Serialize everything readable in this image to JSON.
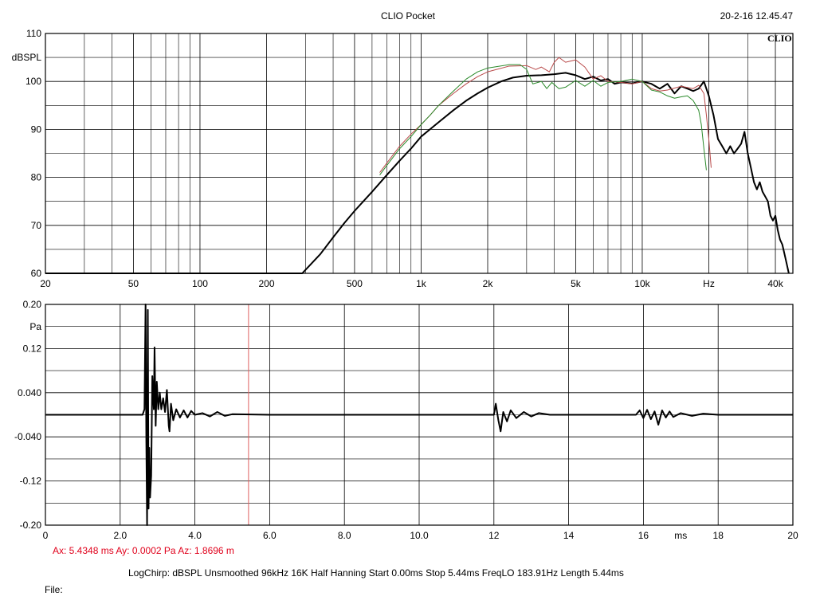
{
  "header": {
    "title": "CLIO Pocket",
    "timestamp": "20-2-16 12.45.47",
    "brand": "CLIO"
  },
  "chart_data": [
    {
      "type": "line",
      "id": "frequency-response",
      "ylabel": "dBSPL",
      "xscale": "log",
      "xlim": [
        20,
        48000
      ],
      "ylim": [
        60,
        110
      ],
      "x_ticks": [
        {
          "v": 20,
          "label": "20"
        },
        {
          "v": 50,
          "label": "50"
        },
        {
          "v": 100,
          "label": "100"
        },
        {
          "v": 200,
          "label": "200"
        },
        {
          "v": 500,
          "label": "500"
        },
        {
          "v": 1000,
          "label": "1k"
        },
        {
          "v": 2000,
          "label": "2k"
        },
        {
          "v": 5000,
          "label": "5k"
        },
        {
          "v": 10000,
          "label": "10k"
        },
        {
          "v": 20000,
          "label": "Hz"
        },
        {
          "v": 40000,
          "label": "40k"
        }
      ],
      "y_ticks": [
        {
          "v": 60,
          "label": "60"
        },
        {
          "v": 70,
          "label": "70"
        },
        {
          "v": 80,
          "label": "80"
        },
        {
          "v": 90,
          "label": "90"
        },
        {
          "v": 100,
          "label": "100"
        },
        {
          "v": 110,
          "label": "110"
        }
      ],
      "minor_gridlines_x": [
        30,
        40,
        60,
        70,
        80,
        90,
        300,
        400,
        600,
        700,
        800,
        900,
        3000,
        4000,
        6000,
        7000,
        8000,
        9000,
        30000
      ],
      "minor_gridlines_y": [
        65,
        75,
        85,
        95,
        105
      ],
      "grid": true,
      "series": [
        {
          "color": "#000000",
          "width": 2,
          "points": [
            [
              20,
              60
            ],
            [
              290,
              60
            ],
            [
              350,
              64
            ],
            [
              400,
              67.5
            ],
            [
              450,
              70.5
            ],
            [
              500,
              73
            ],
            [
              600,
              77
            ],
            [
              700,
              80.5
            ],
            [
              800,
              83.5
            ],
            [
              900,
              86
            ],
            [
              1000,
              88.5
            ],
            [
              1200,
              91.5
            ],
            [
              1400,
              94
            ],
            [
              1600,
              96
            ],
            [
              1800,
              97.5
            ],
            [
              2000,
              98.7
            ],
            [
              2300,
              100
            ],
            [
              2600,
              100.8
            ],
            [
              3000,
              101.2
            ],
            [
              3500,
              101.3
            ],
            [
              4000,
              101.5
            ],
            [
              4500,
              101.8
            ],
            [
              5000,
              101.3
            ],
            [
              5500,
              100.5
            ],
            [
              6000,
              101
            ],
            [
              6500,
              100.2
            ],
            [
              7000,
              100.5
            ],
            [
              7500,
              99.5
            ],
            [
              8000,
              99.8
            ],
            [
              9000,
              99.6
            ],
            [
              10000,
              100
            ],
            [
              11000,
              99.5
            ],
            [
              12000,
              98.5
            ],
            [
              13000,
              99.5
            ],
            [
              14000,
              97.5
            ],
            [
              15000,
              99
            ],
            [
              16000,
              98.5
            ],
            [
              17000,
              98
            ],
            [
              18000,
              98.5
            ],
            [
              19000,
              100
            ],
            [
              20000,
              97
            ],
            [
              21000,
              93
            ],
            [
              22000,
              88
            ],
            [
              23000,
              86.5
            ],
            [
              24000,
              85
            ],
            [
              25000,
              86.5
            ],
            [
              26000,
              85
            ],
            [
              27000,
              86
            ],
            [
              28000,
              87
            ],
            [
              29000,
              89.5
            ],
            [
              30000,
              85
            ],
            [
              31000,
              82
            ],
            [
              32000,
              79
            ],
            [
              33000,
              77.5
            ],
            [
              34000,
              79
            ],
            [
              35000,
              77
            ],
            [
              36000,
              76
            ],
            [
              37000,
              75
            ],
            [
              38000,
              72
            ],
            [
              39000,
              71
            ],
            [
              40000,
              72
            ],
            [
              41000,
              69
            ],
            [
              42000,
              67
            ],
            [
              43000,
              66
            ],
            [
              44000,
              64
            ],
            [
              45000,
              62
            ],
            [
              46000,
              60
            ]
          ]
        },
        {
          "color": "#b94a4a",
          "width": 1,
          "points": [
            [
              650,
              81
            ],
            [
              700,
              83
            ],
            [
              800,
              86.5
            ],
            [
              900,
              89
            ],
            [
              1000,
              91
            ],
            [
              1100,
              93
            ],
            [
              1200,
              95
            ],
            [
              1400,
              97.5
            ],
            [
              1600,
              99.5
            ],
            [
              1800,
              101
            ],
            [
              2000,
              102
            ],
            [
              2500,
              103.2
            ],
            [
              3000,
              103.3
            ],
            [
              3300,
              102.5
            ],
            [
              3500,
              103
            ],
            [
              3800,
              102
            ],
            [
              4000,
              104
            ],
            [
              4200,
              105
            ],
            [
              4500,
              104
            ],
            [
              5000,
              104.5
            ],
            [
              5500,
              103
            ],
            [
              6000,
              100.5
            ],
            [
              6500,
              101.2
            ],
            [
              7000,
              100
            ],
            [
              8000,
              99.8
            ],
            [
              9000,
              99.5
            ],
            [
              10000,
              100
            ],
            [
              11000,
              98.5
            ],
            [
              12000,
              98
            ],
            [
              13000,
              98.2
            ],
            [
              15000,
              99
            ],
            [
              17000,
              98.5
            ],
            [
              18000,
              99.2
            ],
            [
              19000,
              97.5
            ],
            [
              19500,
              93
            ],
            [
              20000,
              88
            ],
            [
              20500,
              82
            ]
          ]
        },
        {
          "color": "#2a8a2a",
          "width": 1,
          "points": [
            [
              650,
              80.5
            ],
            [
              700,
              82.5
            ],
            [
              800,
              86
            ],
            [
              900,
              88.5
            ],
            [
              1000,
              91
            ],
            [
              1100,
              93
            ],
            [
              1200,
              95
            ],
            [
              1400,
              98
            ],
            [
              1600,
              100.5
            ],
            [
              1800,
              102
            ],
            [
              2000,
              102.8
            ],
            [
              2500,
              103.5
            ],
            [
              2800,
              103.5
            ],
            [
              3000,
              102.5
            ],
            [
              3200,
              99.5
            ],
            [
              3500,
              100
            ],
            [
              3700,
              98.5
            ],
            [
              3900,
              99.8
            ],
            [
              4200,
              98.5
            ],
            [
              4500,
              98.8
            ],
            [
              5000,
              100.2
            ],
            [
              5500,
              99
            ],
            [
              6000,
              100.2
            ],
            [
              6500,
              99
            ],
            [
              7000,
              99.8
            ],
            [
              8000,
              100
            ],
            [
              9000,
              100.5
            ],
            [
              10000,
              100
            ],
            [
              11000,
              98.2
            ],
            [
              12000,
              97.8
            ],
            [
              13000,
              97
            ],
            [
              14000,
              96.5
            ],
            [
              15000,
              96.8
            ],
            [
              16000,
              97
            ],
            [
              17000,
              96
            ],
            [
              18000,
              94
            ],
            [
              18500,
              91
            ],
            [
              19000,
              86
            ],
            [
              19500,
              81.5
            ]
          ]
        }
      ]
    },
    {
      "type": "line",
      "id": "impulse-response",
      "ylabel": "Pa",
      "xlabel": "ms",
      "xlim": [
        0,
        20
      ],
      "ylim": [
        -0.2,
        0.2
      ],
      "x_ticks": [
        {
          "v": 0,
          "label": "0"
        },
        {
          "v": 2,
          "label": "2.0"
        },
        {
          "v": 4,
          "label": "4.0"
        },
        {
          "v": 6,
          "label": "6.0"
        },
        {
          "v": 8,
          "label": "8.0"
        },
        {
          "v": 10,
          "label": "10.0"
        },
        {
          "v": 12,
          "label": "12"
        },
        {
          "v": 14,
          "label": "14"
        },
        {
          "v": 16,
          "label": "16"
        },
        {
          "v": 18,
          "label": "18"
        },
        {
          "v": 20,
          "label": "20"
        }
      ],
      "y_ticks": [
        {
          "v": 0.2,
          "label": "0.20"
        },
        {
          "v": 0.12,
          "label": "0.12"
        },
        {
          "v": 0.04,
          "label": "0.040"
        },
        {
          "v": -0.04,
          "label": "-0.040"
        },
        {
          "v": -0.12,
          "label": "-0.12"
        },
        {
          "v": -0.2,
          "label": "-0.20"
        }
      ],
      "unit_label_value": 0.16,
      "unit_label_text": "Pa",
      "xunit_label_value": 17,
      "minor_gridlines_y": [
        0.16,
        0.08,
        0,
        -0.08,
        -0.16
      ],
      "grid": true,
      "cursor_x": 5.4348,
      "cursor_color": "#e06060",
      "series": [
        {
          "color": "#000000",
          "width": 2,
          "points": [
            [
              0,
              0
            ],
            [
              2.6,
              0
            ],
            [
              2.65,
              0.01
            ],
            [
              2.68,
              0.2
            ],
            [
              2.7,
              -0.05
            ],
            [
              2.72,
              -0.2
            ],
            [
              2.74,
              0.19
            ],
            [
              2.76,
              -0.17
            ],
            [
              2.78,
              -0.06
            ],
            [
              2.8,
              -0.15
            ],
            [
              2.83,
              -0.11
            ],
            [
              2.86,
              0.07
            ],
            [
              2.9,
              0.01
            ],
            [
              2.92,
              0.122
            ],
            [
              2.95,
              -0.02
            ],
            [
              2.98,
              0.06
            ],
            [
              3.02,
              0.01
            ],
            [
              3.06,
              0.04
            ],
            [
              3.1,
              0.01
            ],
            [
              3.15,
              0.03
            ],
            [
              3.2,
              0.005
            ],
            [
              3.25,
              0.045
            ],
            [
              3.3,
              -0.02
            ],
            [
              3.32,
              -0.03
            ],
            [
              3.36,
              0.02
            ],
            [
              3.42,
              -0.01
            ],
            [
              3.5,
              0.01
            ],
            [
              3.6,
              -0.005
            ],
            [
              3.7,
              0.008
            ],
            [
              3.8,
              -0.005
            ],
            [
              3.9,
              0.007
            ],
            [
              4.0,
              0.0
            ],
            [
              4.2,
              0.003
            ],
            [
              4.4,
              -0.003
            ],
            [
              4.6,
              0.005
            ],
            [
              4.8,
              -0.002
            ],
            [
              5,
              0.001
            ],
            [
              6,
              0
            ],
            [
              8,
              0
            ],
            [
              10,
              0
            ],
            [
              12,
              0
            ],
            [
              12.05,
              0.02
            ],
            [
              12.12,
              -0.01
            ],
            [
              12.18,
              -0.03
            ],
            [
              12.25,
              0.005
            ],
            [
              12.35,
              -0.012
            ],
            [
              12.45,
              0.008
            ],
            [
              12.6,
              -0.006
            ],
            [
              12.8,
              0.005
            ],
            [
              13,
              -0.003
            ],
            [
              13.2,
              0.003
            ],
            [
              13.5,
              0
            ],
            [
              15.8,
              0
            ],
            [
              15.9,
              0.008
            ],
            [
              16,
              -0.006
            ],
            [
              16.1,
              0.009
            ],
            [
              16.2,
              -0.008
            ],
            [
              16.3,
              0.006
            ],
            [
              16.4,
              -0.018
            ],
            [
              16.5,
              0.008
            ],
            [
              16.6,
              -0.005
            ],
            [
              16.7,
              0.006
            ],
            [
              16.8,
              -0.004
            ],
            [
              17,
              0.003
            ],
            [
              17.3,
              -0.002
            ],
            [
              17.6,
              0.002
            ],
            [
              18,
              0
            ],
            [
              20,
              0
            ]
          ]
        }
      ]
    }
  ],
  "cursor": {
    "readout": "Ax: 5.4348 ms   Ay: 0.0002 Pa   Az: 1.8696 m"
  },
  "settings": {
    "text": "LogChirp:  dBSPL   Unsmoothed   96kHz   16K   Half Hanning   Start 0.00ms    Stop 5.44ms    FreqLO 183.91Hz    Length 5.44ms"
  },
  "footer": {
    "file_label": "File:"
  }
}
